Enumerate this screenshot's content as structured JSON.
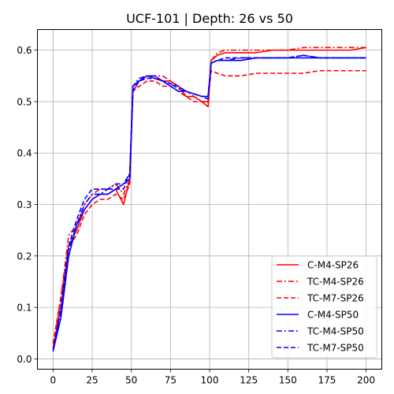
{
  "chart_data": {
    "type": "line",
    "title": "UCF-101 | Depth: 26 vs 50",
    "xlabel": "",
    "ylabel": "",
    "xlim": [
      -10,
      210
    ],
    "ylim": [
      -0.02,
      0.64
    ],
    "xticks": [
      0,
      25,
      50,
      75,
      100,
      125,
      150,
      175,
      200
    ],
    "yticks": [
      0.0,
      0.1,
      0.2,
      0.3,
      0.4,
      0.5,
      0.6
    ],
    "grid": true,
    "legend_position": "lower-right",
    "series": [
      {
        "name": "C-M4-SP26",
        "color": "#ff0000",
        "dash": "solid",
        "x": [
          0,
          5,
          10,
          15,
          20,
          25,
          30,
          35,
          40,
          45,
          49,
          51,
          55,
          60,
          65,
          70,
          75,
          80,
          85,
          90,
          95,
          99,
          101,
          105,
          110,
          120,
          130,
          140,
          150,
          160,
          170,
          180,
          190,
          200
        ],
        "values": [
          0.02,
          0.1,
          0.22,
          0.25,
          0.29,
          0.31,
          0.32,
          0.32,
          0.33,
          0.3,
          0.35,
          0.53,
          0.54,
          0.55,
          0.55,
          0.54,
          0.54,
          0.53,
          0.51,
          0.51,
          0.5,
          0.49,
          0.58,
          0.59,
          0.595,
          0.595,
          0.595,
          0.6,
          0.6,
          0.6,
          0.6,
          0.6,
          0.6,
          0.605
        ]
      },
      {
        "name": "TC-M4-SP26",
        "color": "#ff0000",
        "dash": "dashdot",
        "x": [
          0,
          5,
          10,
          15,
          20,
          25,
          30,
          35,
          40,
          45,
          49,
          51,
          55,
          60,
          65,
          70,
          75,
          80,
          85,
          90,
          95,
          99,
          101,
          105,
          110,
          120,
          130,
          140,
          150,
          160,
          170,
          180,
          190,
          200
        ],
        "values": [
          0.02,
          0.12,
          0.24,
          0.26,
          0.3,
          0.32,
          0.33,
          0.33,
          0.34,
          0.32,
          0.35,
          0.52,
          0.54,
          0.55,
          0.55,
          0.55,
          0.54,
          0.53,
          0.52,
          0.51,
          0.5,
          0.5,
          0.58,
          0.595,
          0.6,
          0.6,
          0.6,
          0.6,
          0.6,
          0.605,
          0.605,
          0.605,
          0.605,
          0.605
        ]
      },
      {
        "name": "TC-M7-SP26",
        "color": "#ff0000",
        "dash": "dashed",
        "x": [
          0,
          5,
          10,
          15,
          20,
          25,
          30,
          35,
          40,
          45,
          49,
          51,
          55,
          60,
          65,
          70,
          75,
          80,
          85,
          90,
          95,
          99,
          101,
          105,
          110,
          120,
          130,
          140,
          150,
          160,
          170,
          180,
          190,
          200
        ],
        "values": [
          0.03,
          0.12,
          0.22,
          0.24,
          0.28,
          0.3,
          0.31,
          0.31,
          0.32,
          0.31,
          0.34,
          0.52,
          0.53,
          0.54,
          0.54,
          0.53,
          0.53,
          0.52,
          0.51,
          0.5,
          0.5,
          0.5,
          0.56,
          0.555,
          0.55,
          0.55,
          0.555,
          0.555,
          0.555,
          0.555,
          0.56,
          0.56,
          0.56,
          0.56
        ]
      },
      {
        "name": "C-M4-SP50",
        "color": "#0000ff",
        "dash": "solid",
        "x": [
          0,
          5,
          10,
          15,
          20,
          25,
          30,
          35,
          40,
          45,
          49,
          51,
          55,
          60,
          65,
          70,
          75,
          80,
          85,
          90,
          95,
          99,
          101,
          105,
          110,
          120,
          130,
          140,
          150,
          160,
          170,
          180,
          190,
          200
        ],
        "values": [
          0.015,
          0.08,
          0.2,
          0.26,
          0.29,
          0.31,
          0.32,
          0.32,
          0.33,
          0.34,
          0.35,
          0.53,
          0.54,
          0.55,
          0.545,
          0.54,
          0.53,
          0.52,
          0.52,
          0.515,
          0.51,
          0.51,
          0.575,
          0.58,
          0.58,
          0.58,
          0.585,
          0.585,
          0.585,
          0.585,
          0.585,
          0.585,
          0.585,
          0.585
        ]
      },
      {
        "name": "TC-M4-SP50",
        "color": "#0000ff",
        "dash": "dashdot",
        "x": [
          0,
          5,
          10,
          15,
          20,
          25,
          30,
          35,
          40,
          45,
          49,
          51,
          55,
          60,
          65,
          70,
          75,
          80,
          85,
          90,
          95,
          99,
          101,
          105,
          110,
          120,
          130,
          140,
          150,
          160,
          170,
          180,
          190,
          200
        ],
        "values": [
          0.015,
          0.09,
          0.21,
          0.26,
          0.3,
          0.32,
          0.32,
          0.33,
          0.34,
          0.34,
          0.36,
          0.53,
          0.545,
          0.55,
          0.55,
          0.54,
          0.535,
          0.525,
          0.52,
          0.515,
          0.51,
          0.505,
          0.575,
          0.58,
          0.58,
          0.585,
          0.585,
          0.585,
          0.585,
          0.59,
          0.585,
          0.585,
          0.585,
          0.585
        ]
      },
      {
        "name": "TC-M7-SP50",
        "color": "#0000ff",
        "dash": "dashed",
        "x": [
          0,
          5,
          10,
          15,
          20,
          25,
          30,
          35,
          40,
          45,
          49,
          51,
          55,
          60,
          65,
          70,
          75,
          80,
          85,
          90,
          95,
          99,
          101,
          105,
          110,
          120,
          130,
          140,
          150,
          160,
          170,
          180,
          190,
          200
        ],
        "values": [
          0.015,
          0.1,
          0.22,
          0.27,
          0.31,
          0.33,
          0.33,
          0.33,
          0.33,
          0.33,
          0.36,
          0.52,
          0.54,
          0.545,
          0.545,
          0.54,
          0.535,
          0.53,
          0.52,
          0.515,
          0.51,
          0.51,
          0.575,
          0.58,
          0.585,
          0.585,
          0.585,
          0.585,
          0.585,
          0.59,
          0.585,
          0.585,
          0.585,
          0.585
        ]
      }
    ]
  }
}
